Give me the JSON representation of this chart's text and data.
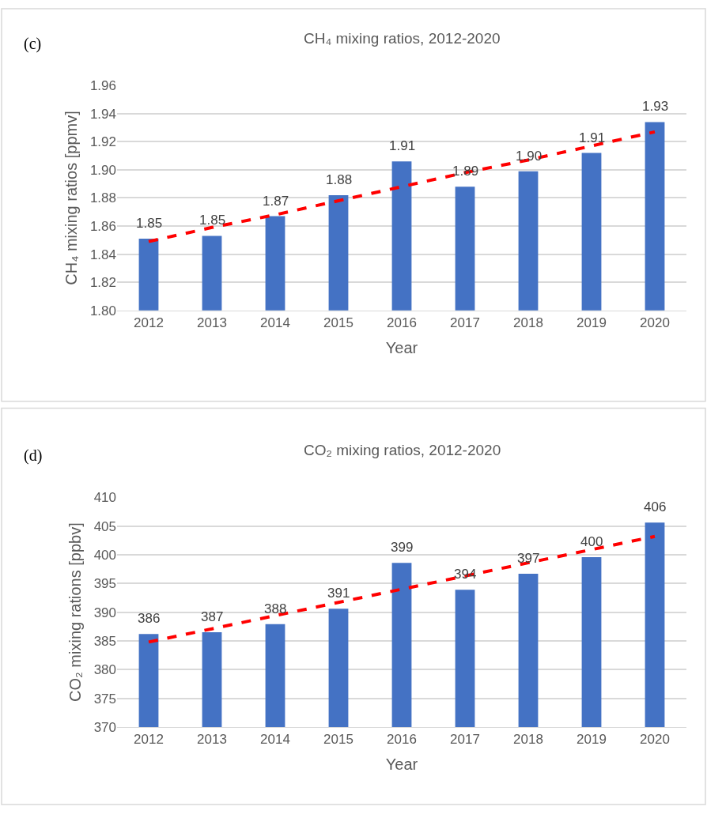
{
  "chart_data": [
    {
      "type": "bar",
      "title": "CH₄ mixing ratios, 2012-2020",
      "xlabel": "Year",
      "ylabel": "CH₄ mixing ratios [ppmv]",
      "annotations": [
        "(c)"
      ],
      "categories": [
        "2012",
        "2013",
        "2014",
        "2015",
        "2016",
        "2017",
        "2018",
        "2019",
        "2020"
      ],
      "series": [
        {
          "color": "#4472c4",
          "values": [
            1.851,
            1.853,
            1.867,
            1.882,
            1.906,
            1.888,
            1.899,
            1.912,
            1.934
          ],
          "value_labels": [
            "1.85",
            "1.85",
            "1.87",
            "1.88",
            "1.91",
            "1.89",
            "1.90",
            "1.91",
            "1.93"
          ]
        },
        {
          "type": "line",
          "color": "#ff0000",
          "line_style": "dashed",
          "values": [
            1.849,
            1.859,
            1.868,
            1.878,
            1.888,
            1.898,
            1.907,
            1.917,
            1.927
          ]
        }
      ],
      "ylim": [
        1.8,
        1.96
      ],
      "yticks": [
        {
          "value": 1.8,
          "label": "1.80"
        },
        {
          "value": 1.82,
          "label": "1.82"
        },
        {
          "value": 1.84,
          "label": "1.84"
        },
        {
          "value": 1.86,
          "label": "1.86"
        },
        {
          "value": 1.88,
          "label": "1.88"
        },
        {
          "value": 1.9,
          "label": "1.90"
        },
        {
          "value": 1.92,
          "label": "1.92"
        },
        {
          "value": 1.94,
          "label": "1.94"
        },
        {
          "value": 1.96,
          "label": "1.96"
        }
      ],
      "grid": "y"
    },
    {
      "type": "bar",
      "title": "CO₂ mixing ratios, 2012-2020",
      "xlabel": "Year",
      "ylabel": "CO₂ mixing rations [ppbv]",
      "annotations": [
        "(d)"
      ],
      "categories": [
        "2012",
        "2013",
        "2014",
        "2015",
        "2016",
        "2017",
        "2018",
        "2019",
        "2020"
      ],
      "series": [
        {
          "color": "#4472c4",
          "values": [
            386.2,
            386.5,
            387.9,
            390.6,
            398.6,
            393.9,
            396.7,
            399.6,
            405.6
          ],
          "value_labels": [
            "386",
            "387",
            "388",
            "391",
            "399",
            "394",
            "397",
            "400",
            "406"
          ]
        },
        {
          "type": "line",
          "color": "#ff0000",
          "line_style": "dashed",
          "values": [
            384.8,
            387.1,
            389.4,
            391.7,
            394.0,
            396.3,
            398.6,
            400.9,
            403.2
          ]
        }
      ],
      "ylim": [
        370,
        410
      ],
      "yticks": [
        370,
        375,
        380,
        385,
        390,
        395,
        400,
        405,
        410
      ],
      "grid": "y"
    }
  ]
}
